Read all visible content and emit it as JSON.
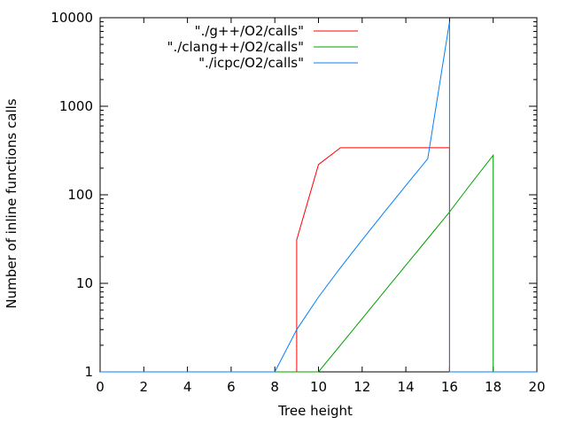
{
  "chart_data": {
    "type": "line",
    "title": "",
    "xlabel": "Tree height",
    "ylabel": "Number of inline functions calls",
    "xlim": [
      0,
      20
    ],
    "ylim": [
      1,
      10000
    ],
    "yscale": "log",
    "grid": false,
    "legend_position": "top-center",
    "x_ticks": [
      0,
      2,
      4,
      6,
      8,
      10,
      12,
      14,
      16,
      18,
      20
    ],
    "x_tick_labels": [
      "0",
      "2",
      "4",
      "6",
      "8",
      "10",
      "12",
      "14",
      "16",
      "18",
      "20"
    ],
    "y_ticks": [
      1,
      10,
      100,
      1000,
      10000
    ],
    "y_tick_labels": [
      "1",
      "10",
      "100",
      "1000",
      "10000"
    ],
    "series": [
      {
        "name": "\"./g++/O2/calls\"",
        "color": "#ff0000",
        "x": [
          9,
          9,
          10,
          11,
          12,
          13,
          14,
          15,
          16,
          16
        ],
        "y": [
          1,
          31,
          220,
          340,
          340,
          340,
          340,
          340,
          340,
          1
        ]
      },
      {
        "name": "\"./clang++/O2/calls\"",
        "color": "#00a000",
        "x": [
          10,
          11,
          12,
          13,
          14,
          15,
          16,
          17,
          18,
          18
        ],
        "y": [
          1,
          2,
          4,
          8,
          16,
          32,
          64,
          135,
          280,
          1
        ]
      },
      {
        "name": "\"./icpc/O2/calls\"",
        "color": "#0080ff",
        "x": [
          8,
          9,
          10,
          11,
          12,
          13,
          14,
          15,
          16,
          16
        ],
        "y": [
          1,
          3,
          7,
          15,
          31,
          63,
          127,
          255,
          9000,
          1
        ]
      }
    ]
  }
}
